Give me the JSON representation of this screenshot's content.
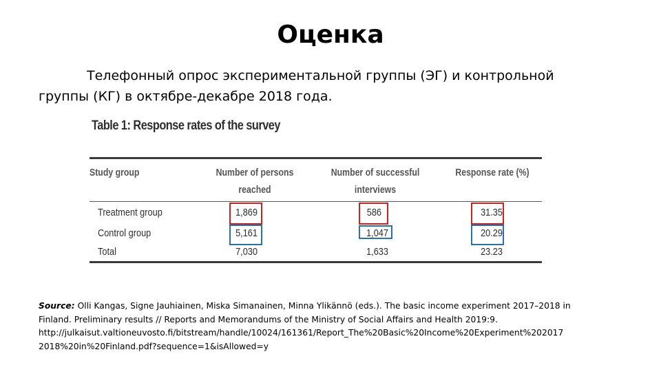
{
  "slide": {
    "title": "Оценка",
    "intro_line1": "Телефонный опрос экспериментальной группы (ЭГ) и контрольной",
    "intro_line2": "группы (КГ) в октябре-декабре 2018 года."
  },
  "table": {
    "caption": "Table 1: Response rates of the survey",
    "headers": {
      "study_group": "Study group",
      "persons_reached_1": "Number of persons",
      "persons_reached_2": "reached",
      "successful_1": "Number of successful",
      "successful_2": "interviews",
      "response_rate": "Response rate (%)"
    },
    "rows": [
      {
        "group": "Treatment group",
        "reached": "1,869",
        "interviews": "586",
        "rate": "31.35"
      },
      {
        "group": "Control group",
        "reached": "5,161",
        "interviews": "1,047",
        "rate": "20.29"
      },
      {
        "group": "Total",
        "reached": "7,030",
        "interviews": "1,633",
        "rate": "23.23"
      }
    ],
    "highlight_colors": {
      "treatment": "#cc2222",
      "control": "#2a6fb0"
    }
  },
  "source": {
    "label": "Source:",
    "line1": "Olli Kangas, Signe Jauhiainen, Miska Simanainen, Minna Ylikännö (eds.). The basic income experiment 2017–2018 in",
    "line2": "Finland. Preliminary results // Reports and Memorandums of the Ministry of Social Affairs and Health 2019:9.",
    "line3": "http://julkaisut.valtioneuvosto.fi/bitstream/handle/10024/161361/Report_The%20Basic%20Income%20Experiment%202017",
    "line4": "2018%20in%20Finland.pdf?sequence=1&isAllowed=y"
  }
}
